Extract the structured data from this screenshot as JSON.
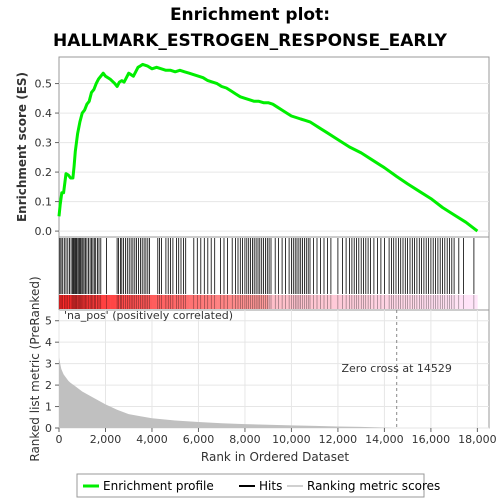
{
  "chart_data": {
    "type": "line",
    "title_line1": "Enrichment plot:",
    "title_line2": "HALLMARK_ESTROGEN_RESPONSE_EARLY",
    "es_panel": {
      "ylabel": "Enrichment score (ES)",
      "ylim": [
        -0.02,
        0.59
      ],
      "yticks": [
        0.0,
        0.1,
        0.2,
        0.3,
        0.4,
        0.5
      ],
      "tick_labels": [
        "0.0",
        "0.1",
        "0.2",
        "0.3",
        "0.4",
        "0.5"
      ],
      "color": "#00ee00",
      "x": [
        0,
        50,
        120,
        200,
        300,
        400,
        500,
        600,
        650,
        700,
        800,
        900,
        1000,
        1100,
        1200,
        1300,
        1400,
        1500,
        1600,
        1700,
        1800,
        1900,
        2000,
        2200,
        2400,
        2500,
        2600,
        2700,
        2800,
        2900,
        3000,
        3100,
        3200,
        3300,
        3400,
        3500,
        3600,
        3800,
        4000,
        4200,
        4400,
        4600,
        4800,
        5000,
        5200,
        5400,
        5600,
        5800,
        6000,
        6200,
        6400,
        6600,
        6800,
        7000,
        7200,
        7400,
        7600,
        7800,
        8000,
        8200,
        8400,
        8600,
        8800,
        9000,
        9200,
        9400,
        9600,
        9800,
        10000,
        10200,
        10400,
        10600,
        10800,
        11000,
        11200,
        11500,
        12000,
        12500,
        13000,
        13500,
        14000,
        14529,
        15000,
        15500,
        16000,
        16500,
        17000,
        17500,
        18000
      ],
      "y": [
        0.05,
        0.09,
        0.13,
        0.13,
        0.195,
        0.19,
        0.18,
        0.18,
        0.22,
        0.27,
        0.33,
        0.37,
        0.4,
        0.41,
        0.43,
        0.44,
        0.47,
        0.48,
        0.5,
        0.515,
        0.525,
        0.535,
        0.525,
        0.515,
        0.5,
        0.49,
        0.505,
        0.51,
        0.505,
        0.52,
        0.535,
        0.53,
        0.525,
        0.54,
        0.555,
        0.56,
        0.565,
        0.56,
        0.55,
        0.555,
        0.55,
        0.545,
        0.545,
        0.54,
        0.545,
        0.54,
        0.535,
        0.53,
        0.525,
        0.52,
        0.51,
        0.505,
        0.5,
        0.49,
        0.485,
        0.475,
        0.465,
        0.455,
        0.45,
        0.445,
        0.44,
        0.44,
        0.435,
        0.435,
        0.43,
        0.42,
        0.41,
        0.4,
        0.39,
        0.385,
        0.38,
        0.375,
        0.37,
        0.36,
        0.35,
        0.335,
        0.31,
        0.285,
        0.265,
        0.24,
        0.215,
        0.185,
        0.16,
        0.135,
        0.11,
        0.08,
        0.055,
        0.03,
        0.0
      ]
    },
    "hits_panel": {
      "ranks": [
        40,
        90,
        160,
        230,
        300,
        380,
        450,
        520,
        580,
        620,
        660,
        700,
        740,
        780,
        830,
        880,
        930,
        980,
        1030,
        1080,
        1140,
        1200,
        1270,
        1340,
        1400,
        1460,
        1520,
        1580,
        1650,
        1720,
        1800,
        2050,
        2500,
        2560,
        2640,
        2700,
        2780,
        2860,
        2940,
        3020,
        3100,
        3180,
        3260,
        3340,
        3420,
        3500,
        3580,
        3660,
        3740,
        3820,
        3900,
        4250,
        4330,
        4410,
        4600,
        4700,
        4800,
        4900,
        5050,
        5150,
        5250,
        5350,
        5450,
        5800,
        5950,
        6100,
        6250,
        6400,
        6550,
        6700,
        6950,
        7100,
        7250,
        7450,
        7600,
        7700,
        7800,
        7900,
        8000,
        8080,
        8160,
        8240,
        8320,
        8400,
        8480,
        8560,
        8640,
        8720,
        8800,
        8880,
        8960,
        9040,
        9120,
        9300,
        9450,
        9600,
        9750,
        9900,
        10000,
        10080,
        10160,
        10240,
        10320,
        10400,
        10480,
        10560,
        10640,
        10720,
        10800,
        10950,
        11100,
        11250,
        11400,
        11550,
        11700,
        12000,
        12200,
        12350,
        12500,
        12600,
        12700,
        12800,
        12900,
        13000,
        13100,
        13200,
        13300,
        13400,
        13550,
        13700,
        13850,
        14000,
        14200,
        14300,
        14400,
        14500,
        14600,
        14700,
        14800,
        14900,
        15000,
        15100,
        15200,
        15300,
        15400,
        15500,
        15600,
        15700,
        15800,
        15900,
        16000,
        16100,
        16200,
        16300,
        16400,
        16500,
        16600,
        16700,
        16800,
        16900,
        17000,
        17200,
        17400,
        17850
      ]
    },
    "metric_panel": {
      "ylabel": "Ranked list metric (PreRanked)",
      "xlabel": "Rank in Ordered Dataset",
      "ylim": [
        0,
        5.5
      ],
      "yticks": [
        0,
        1,
        2,
        3,
        4,
        5
      ],
      "xlim": [
        0,
        18500
      ],
      "xticks": [
        0,
        2000,
        4000,
        6000,
        8000,
        10000,
        12000,
        14000,
        16000,
        18000
      ],
      "xtick_labels": [
        "0",
        "2,000",
        "4,000",
        "6,000",
        "8,000",
        "10,000",
        "12,000",
        "14,000",
        "16,000",
        "18,000"
      ],
      "annotation_pos": "'na_pos' (positively correlated)",
      "zero_cross_label": "Zero cross at 14529",
      "zero_cross": 14529,
      "fill_color": "#c0c0c0",
      "x": [
        0,
        50,
        100,
        200,
        300,
        400,
        500,
        700,
        1000,
        1500,
        2000,
        2500,
        3000,
        3500,
        4000,
        5000,
        6000,
        7000,
        8000,
        9000,
        10000,
        11000,
        12000,
        13000,
        14000,
        14529
      ],
      "y": [
        3.3,
        3.0,
        2.75,
        2.5,
        2.35,
        2.2,
        2.1,
        1.95,
        1.7,
        1.4,
        1.1,
        0.85,
        0.65,
        0.55,
        0.45,
        0.35,
        0.28,
        0.22,
        0.18,
        0.15,
        0.12,
        0.1,
        0.07,
        0.05,
        0.02,
        0.0
      ]
    },
    "legend": {
      "items": [
        {
          "label": "Enrichment profile",
          "color": "#00ee00"
        },
        {
          "label": "Hits",
          "color": "#000000"
        },
        {
          "label": "Ranking metric scores",
          "color": "#c0c0c0"
        }
      ]
    }
  }
}
